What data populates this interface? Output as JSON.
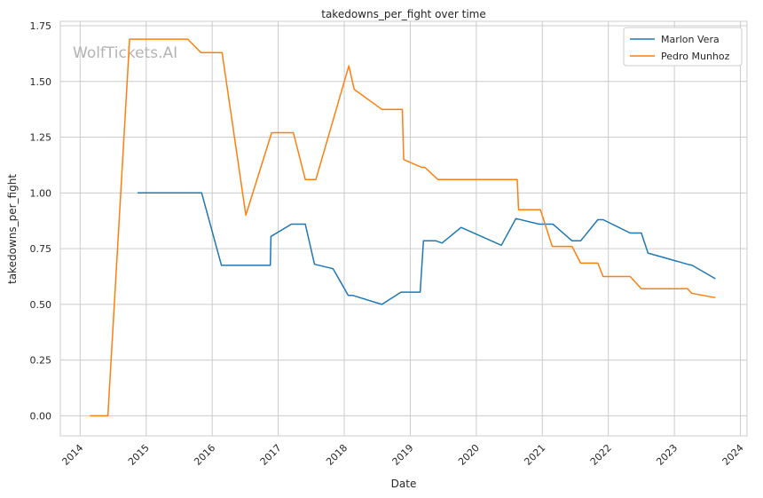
{
  "watermark": "WolfTickets.AI",
  "chart_data": {
    "type": "line",
    "title": "takedowns_per_fight over time",
    "xlabel": "Date",
    "ylabel": "takedowns_per_fight",
    "xlim": [
      2013.7,
      2024.1
    ],
    "ylim": [
      -0.09,
      1.77
    ],
    "x_ticks": [
      2014,
      2015,
      2016,
      2017,
      2018,
      2019,
      2020,
      2021,
      2022,
      2023,
      2024
    ],
    "y_ticks": [
      0.0,
      0.25,
      0.5,
      0.75,
      1.0,
      1.25,
      1.5,
      1.75
    ],
    "grid": true,
    "legend_position": "top-right",
    "series": [
      {
        "name": "Marlon Vera",
        "color": "#1f77b4",
        "points": [
          [
            2014.87,
            1.0
          ],
          [
            2015.84,
            1.0
          ],
          [
            2016.14,
            0.675
          ],
          [
            2016.88,
            0.675
          ],
          [
            2016.89,
            0.805
          ],
          [
            2017.2,
            0.86
          ],
          [
            2017.41,
            0.86
          ],
          [
            2017.55,
            0.68
          ],
          [
            2017.83,
            0.66
          ],
          [
            2018.06,
            0.54
          ],
          [
            2018.13,
            0.54
          ],
          [
            2018.57,
            0.5
          ],
          [
            2018.86,
            0.555
          ],
          [
            2019.15,
            0.555
          ],
          [
            2019.2,
            0.785
          ],
          [
            2019.39,
            0.785
          ],
          [
            2019.48,
            0.775
          ],
          [
            2019.77,
            0.845
          ],
          [
            2020.38,
            0.765
          ],
          [
            2020.6,
            0.885
          ],
          [
            2020.95,
            0.86
          ],
          [
            2021.16,
            0.86
          ],
          [
            2021.45,
            0.785
          ],
          [
            2021.58,
            0.785
          ],
          [
            2021.84,
            0.88
          ],
          [
            2021.92,
            0.88
          ],
          [
            2022.33,
            0.82
          ],
          [
            2022.5,
            0.82
          ],
          [
            2022.6,
            0.73
          ],
          [
            2023.2,
            0.68
          ],
          [
            2023.27,
            0.675
          ],
          [
            2023.62,
            0.615
          ]
        ]
      },
      {
        "name": "Pedro Munhoz",
        "color": "#ff7f0e",
        "points": [
          [
            2014.15,
            0.0
          ],
          [
            2014.42,
            0.0
          ],
          [
            2014.75,
            1.69
          ],
          [
            2015.63,
            1.69
          ],
          [
            2015.83,
            1.63
          ],
          [
            2016.15,
            1.63
          ],
          [
            2016.51,
            0.9
          ],
          [
            2016.9,
            1.27
          ],
          [
            2017.23,
            1.27
          ],
          [
            2017.41,
            1.06
          ],
          [
            2017.57,
            1.06
          ],
          [
            2018.07,
            1.57
          ],
          [
            2018.15,
            1.465
          ],
          [
            2018.57,
            1.375
          ],
          [
            2018.88,
            1.375
          ],
          [
            2018.9,
            1.15
          ],
          [
            2019.17,
            1.115
          ],
          [
            2019.22,
            1.115
          ],
          [
            2019.42,
            1.06
          ],
          [
            2020.62,
            1.06
          ],
          [
            2020.64,
            0.925
          ],
          [
            2020.97,
            0.925
          ],
          [
            2021.15,
            0.76
          ],
          [
            2021.45,
            0.76
          ],
          [
            2021.58,
            0.685
          ],
          [
            2021.84,
            0.685
          ],
          [
            2021.92,
            0.625
          ],
          [
            2022.33,
            0.625
          ],
          [
            2022.5,
            0.57
          ],
          [
            2023.2,
            0.57
          ],
          [
            2023.26,
            0.55
          ],
          [
            2023.62,
            0.53
          ]
        ]
      }
    ]
  }
}
